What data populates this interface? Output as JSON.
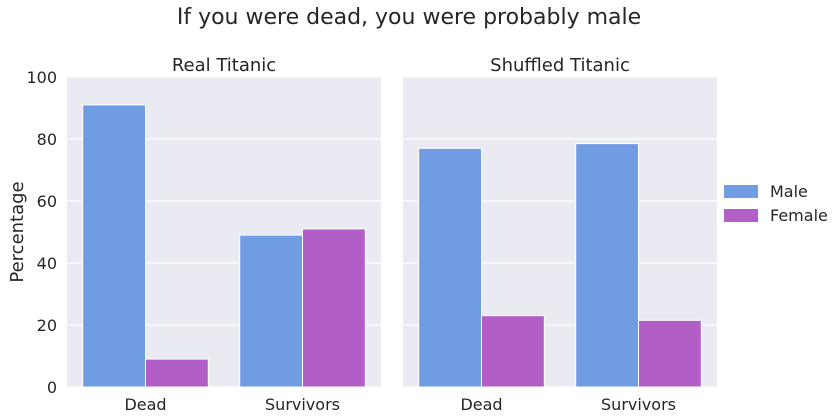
{
  "suptitle": "If you were dead, you were probably male",
  "legend": {
    "placement": "right",
    "entries": [
      {
        "name": "Male",
        "color": "#6f9ce2"
      },
      {
        "name": "Female",
        "color": "#b15ec7"
      }
    ]
  },
  "chart_data": [
    {
      "type": "bar",
      "title": "Real Titanic",
      "xlabel": "",
      "ylabel": "Percentage",
      "categories": [
        "Dead",
        "Survivors"
      ],
      "series": [
        {
          "name": "Male",
          "values": [
            91,
            49
          ]
        },
        {
          "name": "Female",
          "values": [
            9,
            51
          ]
        }
      ],
      "ylim": [
        0,
        100
      ],
      "yticks": [
        0,
        20,
        40,
        60,
        80,
        100
      ],
      "grid": true
    },
    {
      "type": "bar",
      "title": "Shuffled Titanic",
      "xlabel": "",
      "ylabel": "",
      "categories": [
        "Dead",
        "Survivors"
      ],
      "series": [
        {
          "name": "Male",
          "values": [
            77,
            78.5
          ]
        },
        {
          "name": "Female",
          "values": [
            23,
            21.5
          ]
        }
      ],
      "ylim": [
        0,
        100
      ],
      "yticks": [
        0,
        20,
        40,
        60,
        80,
        100
      ],
      "grid": true
    }
  ]
}
